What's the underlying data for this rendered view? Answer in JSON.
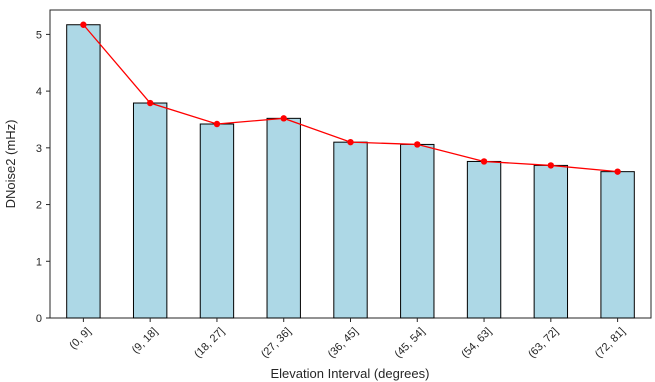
{
  "chart_data": {
    "type": "bar",
    "title": "",
    "xlabel": "Elevation Interval (degrees)",
    "ylabel": "DNoise2 (mHz)",
    "categories": [
      "(0, 9]",
      "(9, 18]",
      "(18, 27]",
      "(27, 36]",
      "(36, 45]",
      "(45, 54]",
      "(54, 63]",
      "(63, 72]",
      "(72, 81]"
    ],
    "values": [
      5.17,
      3.79,
      3.42,
      3.52,
      3.1,
      3.06,
      2.76,
      2.69,
      2.58
    ],
    "ylim": [
      0,
      5.43
    ],
    "yticks": [
      0,
      1,
      2,
      3,
      4,
      5
    ],
    "grid": false,
    "overlay_line": {
      "values": [
        5.17,
        3.79,
        3.42,
        3.52,
        3.1,
        3.06,
        2.76,
        2.69,
        2.58
      ]
    },
    "colors": {
      "bar_fill": "#add8e6",
      "bar_edge": "#000000",
      "line": "#ff0000",
      "marker": "#ff0000"
    }
  }
}
